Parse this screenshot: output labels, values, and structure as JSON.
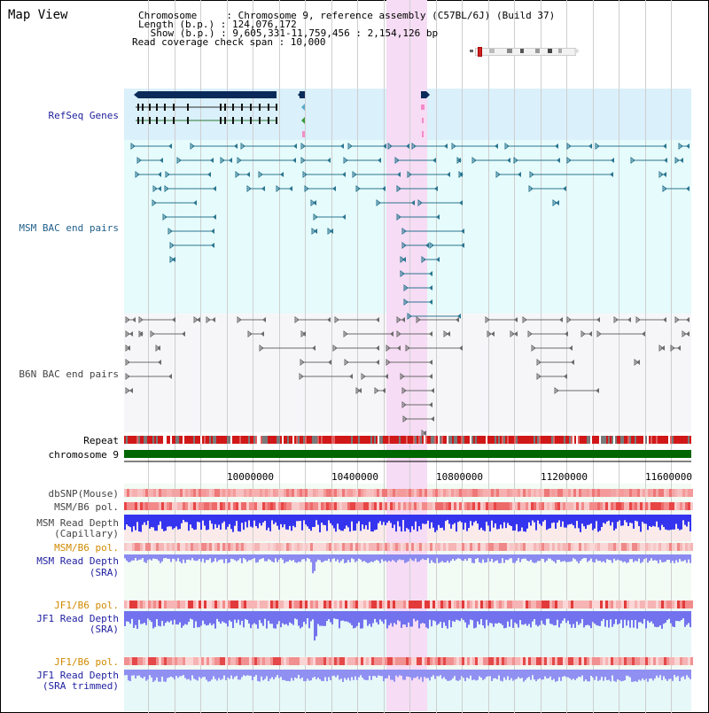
{
  "title": "Map View",
  "info": {
    "chromosome": "Chromosome     : Chromosome 9, reference assembly (C57BL/6J) (Build 37)",
    "length": "Length (b.p.) : 124,076,172",
    "show": " Show (b.p.) : 9,605,331-11,759,456 : 2,154,126 bp",
    "coverage": "Read coverage check span : 10,000"
  },
  "tracks": {
    "refseq": "RefSeq Genes",
    "msm_bac": "MSM BAC end pairs",
    "b6n_bac": "B6N BAC end pairs",
    "repeat": "Repeat",
    "chromosome": "chromosome 9",
    "dbsnp": "dbSNP(Mouse)",
    "msm_b6_pol_1": "MSM/B6 pol.",
    "msm_depth_cap_1": "MSM Read Depth",
    "msm_depth_cap_2": "(Capillary)",
    "msm_b6_pol_2": "MSM/B6 pol.",
    "msm_depth_sra_1": "MSM Read Depth",
    "msm_depth_sra_2": "(SRA)",
    "jf1_b6_pol_1": "JF1/B6 pol.",
    "jf1_depth_sra_1": "JF1 Read Depth",
    "jf1_depth_sra_2": "(SRA)",
    "jf1_b6_pol_2": "JF1/B6 pol.",
    "jf1_depth_trim_1": "JF1 Read Depth",
    "jf1_depth_trim_2": "(SRA trimmed)"
  },
  "axis": {
    "ticks": [
      "10000000",
      "10400000",
      "10800000",
      "11200000",
      "11600000"
    ]
  },
  "colors": {
    "refseq_label": "#1e1e9c",
    "msm_label": "#1f5f8a",
    "b6n_label": "#444444",
    "pol_label": "#d08a00",
    "sra_label": "#1e1ea0",
    "highlight": "#f6ddf4",
    "chromosome_band": "#006600",
    "gene_dark": "#0a2a5a",
    "msm_pair": "#2a7590",
    "b6n_pair": "#6a6a6a",
    "depth_blue": "#3030ff",
    "depth_light": "#7777ee"
  }
}
